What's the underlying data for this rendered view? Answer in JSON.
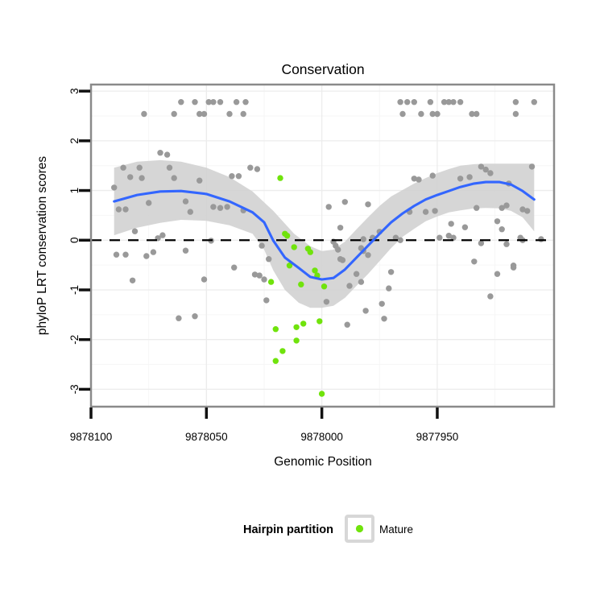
{
  "chart_data": {
    "type": "scatter",
    "title": "Conservation",
    "xlabel": "Genomic Position",
    "ylabel": "phyloP LRT conservation scores",
    "x_axis_reversed": true,
    "x_domain": [
      9878100,
      9877899.4
    ],
    "y_domain": [
      3.132,
      -3.35
    ],
    "x_ticks": [
      9878100,
      9878050,
      9878000,
      9877950
    ],
    "x_tick_labels": [
      "9878100",
      "9878050",
      "9878000",
      "9877950"
    ],
    "y_ticks": [
      3,
      2,
      1,
      0,
      -1,
      -2,
      -3
    ],
    "y_tick_labels": [
      "3",
      "2",
      "1",
      "0",
      "-1",
      "-2",
      "-3"
    ],
    "grid": "on",
    "zero_reference_line": {
      "y": 0,
      "style": "dashed",
      "color": "#000000"
    },
    "colors": {
      "point_gray": "#999999",
      "point_mature": "#70E30C",
      "smooth_line": "#3366FF",
      "confidence_band": "#D2D2D2",
      "frame": "#8A8A8A",
      "grid_major": "#ECECEC",
      "grid_minor": "#F6F6F6",
      "tick": "#111111"
    },
    "legend": {
      "position": "bottom",
      "title": "Hairpin partition",
      "entries": [
        {
          "label": "Mature",
          "color": "#70E30C"
        }
      ]
    },
    "series": [
      {
        "label": "",
        "color_key": "point_gray",
        "points": [
          [
            9878061,
            2.78
          ],
          [
            9878055,
            2.78
          ],
          [
            9878049,
            2.78
          ],
          [
            9878047,
            2.78
          ],
          [
            9878044,
            2.78
          ],
          [
            9878037,
            2.78
          ],
          [
            9878033,
            2.78
          ],
          [
            9877966,
            2.78
          ],
          [
            9877963,
            2.78
          ],
          [
            9877960,
            2.78
          ],
          [
            9877953,
            2.78
          ],
          [
            9877947,
            2.78
          ],
          [
            9877945,
            2.78
          ],
          [
            9877943,
            2.78
          ],
          [
            9877940,
            2.78
          ],
          [
            9877916,
            2.78
          ],
          [
            9877908,
            2.78
          ],
          [
            9878077,
            2.54
          ],
          [
            9878064,
            2.54
          ],
          [
            9878053,
            2.54
          ],
          [
            9878051,
            2.54
          ],
          [
            9878040,
            2.54
          ],
          [
            9878034,
            2.54
          ],
          [
            9877965,
            2.54
          ],
          [
            9877957,
            2.54
          ],
          [
            9877952,
            2.54
          ],
          [
            9877950,
            2.54
          ],
          [
            9877935,
            2.54
          ],
          [
            9877933,
            2.54
          ],
          [
            9877916,
            2.54
          ],
          [
            9878070,
            1.76
          ],
          [
            9878067,
            1.72
          ],
          [
            9878086,
            1.46
          ],
          [
            9878079,
            1.46
          ],
          [
            9878066,
            1.46
          ],
          [
            9878031,
            1.46
          ],
          [
            9878028,
            1.43
          ],
          [
            9878083,
            1.27
          ],
          [
            9878078,
            1.25
          ],
          [
            9878064,
            1.25
          ],
          [
            9878053,
            1.2
          ],
          [
            9878039,
            1.29
          ],
          [
            9878036,
            1.29
          ],
          [
            9878090,
            1.06
          ],
          [
            9877960,
            1.24
          ],
          [
            9877958,
            1.22
          ],
          [
            9877952,
            1.3
          ],
          [
            9877940,
            1.24
          ],
          [
            9877936,
            1.27
          ],
          [
            9877931,
            1.48
          ],
          [
            9877929,
            1.42
          ],
          [
            9877927,
            1.35
          ],
          [
            9877919,
            1.14
          ],
          [
            9877909,
            1.48
          ],
          [
            9878088,
            0.62
          ],
          [
            9878085,
            0.62
          ],
          [
            9878075,
            0.75
          ],
          [
            9878059,
            0.78
          ],
          [
            9878057,
            0.57
          ],
          [
            9878047,
            0.67
          ],
          [
            9878044,
            0.65
          ],
          [
            9878041,
            0.67
          ],
          [
            9878034,
            0.6
          ],
          [
            9878081,
            0.18
          ],
          [
            9878071,
            0.04
          ],
          [
            9878069,
            0.1
          ],
          [
            9878048,
            -0.01
          ],
          [
            9878059,
            -0.21
          ],
          [
            9878089,
            -0.29
          ],
          [
            9878085,
            -0.29
          ],
          [
            9878076,
            -0.32
          ],
          [
            9878073,
            -0.24
          ],
          [
            9878026,
            -0.11
          ],
          [
            9878023,
            -0.38
          ],
          [
            9878082,
            -0.81
          ],
          [
            9878051,
            -0.79
          ],
          [
            9878038,
            -0.55
          ],
          [
            9878029,
            -0.69
          ],
          [
            9878027,
            -0.71
          ],
          [
            9878025,
            -0.79
          ],
          [
            9878024,
            -1.21
          ],
          [
            9878062,
            -1.57
          ],
          [
            9878055,
            -1.53
          ],
          [
            9877997,
            0.67
          ],
          [
            9877990,
            0.77
          ],
          [
            9877980,
            0.72
          ],
          [
            9877962,
            0.57
          ],
          [
            9877955,
            0.57
          ],
          [
            9877951,
            0.59
          ],
          [
            9877933,
            0.65
          ],
          [
            9877922,
            0.65
          ],
          [
            9877920,
            0.7
          ],
          [
            9877913,
            0.62
          ],
          [
            9877911,
            0.59
          ],
          [
            9877992,
            0.25
          ],
          [
            9877975,
            0.17
          ],
          [
            9877982,
            0.02
          ],
          [
            9877978,
            0.05
          ],
          [
            9877968,
            0.05
          ],
          [
            9877966,
            0.0
          ],
          [
            9877995,
            -0.03
          ],
          [
            9877994,
            -0.11
          ],
          [
            9877993,
            -0.19
          ],
          [
            9877983,
            -0.16
          ],
          [
            9877982,
            -0.22
          ],
          [
            9877980,
            -0.3
          ],
          [
            9877949,
            0.05
          ],
          [
            9877945,
            0.09
          ],
          [
            9877943,
            0.05
          ],
          [
            9877944,
            0.33
          ],
          [
            9877938,
            0.26
          ],
          [
            9877924,
            0.38
          ],
          [
            9877922,
            0.22
          ],
          [
            9877914,
            0.05
          ],
          [
            9877931,
            -0.06
          ],
          [
            9877920,
            -0.08
          ],
          [
            9877913,
            0.0
          ],
          [
            9877905,
            0.02
          ],
          [
            9877991,
            -0.4
          ],
          [
            9877992,
            -0.38
          ],
          [
            9877934,
            -0.43
          ],
          [
            9877917,
            -0.51
          ],
          [
            9877924,
            -0.68
          ],
          [
            9877917,
            -0.55
          ],
          [
            9877998,
            -1.24
          ],
          [
            9877988,
            -0.92
          ],
          [
            9877985,
            -0.68
          ],
          [
            9877983,
            -0.84
          ],
          [
            9877970,
            -0.64
          ],
          [
            9877971,
            -0.97
          ],
          [
            9877974,
            -1.28
          ],
          [
            9877981,
            -1.42
          ],
          [
            9877973,
            -1.58
          ],
          [
            9877989,
            -1.7
          ],
          [
            9877927,
            -1.13
          ]
        ]
      },
      {
        "label": "Mature",
        "color_key": "point_mature",
        "points": [
          [
            9878018,
            1.25
          ],
          [
            9878016,
            0.13
          ],
          [
            9878015,
            0.09
          ],
          [
            9878012,
            -0.14
          ],
          [
            9878006,
            -0.17
          ],
          [
            9878005,
            -0.24
          ],
          [
            9878014,
            -0.51
          ],
          [
            9878003,
            -0.61
          ],
          [
            9878002,
            -0.71
          ],
          [
            9877999,
            -0.93
          ],
          [
            9878009,
            -0.89
          ],
          [
            9878022,
            -0.84
          ],
          [
            9878020,
            -1.79
          ],
          [
            9878011,
            -1.75
          ],
          [
            9878008,
            -1.68
          ],
          [
            9878001,
            -1.63
          ],
          [
            9878011,
            -2.02
          ],
          [
            9878017,
            -2.23
          ],
          [
            9878020,
            -2.43
          ],
          [
            9878000,
            -3.09
          ]
        ]
      }
    ],
    "smooth": {
      "line": [
        [
          9878090,
          0.78
        ],
        [
          9878080,
          0.91
        ],
        [
          9878070,
          0.98
        ],
        [
          9878061,
          0.99
        ],
        [
          9878050,
          0.93
        ],
        [
          9878040,
          0.78
        ],
        [
          9878030,
          0.56
        ],
        [
          9878025,
          0.36
        ],
        [
          9878021,
          -0.01
        ],
        [
          9878016,
          -0.35
        ],
        [
          9878010,
          -0.56
        ],
        [
          9878005,
          -0.74
        ],
        [
          9878000,
          -0.79
        ],
        [
          9877995,
          -0.76
        ],
        [
          9877990,
          -0.59
        ],
        [
          9877985,
          -0.35
        ],
        [
          9877980,
          -0.11
        ],
        [
          9877975,
          0.13
        ],
        [
          9877970,
          0.36
        ],
        [
          9877965,
          0.54
        ],
        [
          9877960,
          0.69
        ],
        [
          9877955,
          0.82
        ],
        [
          9877950,
          0.91
        ],
        [
          9877945,
          0.99
        ],
        [
          9877940,
          1.07
        ],
        [
          9877934,
          1.14
        ],
        [
          9877929,
          1.17
        ],
        [
          9877923,
          1.17
        ],
        [
          9877918,
          1.12
        ],
        [
          9877913,
          0.99
        ],
        [
          9877908,
          0.82
        ]
      ],
      "band_upper": [
        [
          9878090,
          1.46
        ],
        [
          9878080,
          1.58
        ],
        [
          9878070,
          1.61
        ],
        [
          9878061,
          1.58
        ],
        [
          9878050,
          1.46
        ],
        [
          9878040,
          1.27
        ],
        [
          9878030,
          0.98
        ],
        [
          9878021,
          0.59
        ],
        [
          9878012,
          0.13
        ],
        [
          9878005,
          -0.12
        ],
        [
          9878000,
          -0.22
        ],
        [
          9877995,
          -0.19
        ],
        [
          9877990,
          -0.03
        ],
        [
          9877985,
          0.22
        ],
        [
          9877980,
          0.46
        ],
        [
          9877975,
          0.69
        ],
        [
          9877970,
          0.88
        ],
        [
          9877965,
          1.01
        ],
        [
          9877960,
          1.14
        ],
        [
          9877955,
          1.25
        ],
        [
          9877950,
          1.35
        ],
        [
          9877945,
          1.43
        ],
        [
          9877940,
          1.5
        ],
        [
          9877934,
          1.53
        ],
        [
          9877929,
          1.54
        ],
        [
          9877923,
          1.54
        ],
        [
          9877918,
          1.54
        ],
        [
          9877913,
          1.54
        ],
        [
          9877908,
          1.54
        ]
      ],
      "band_lower": [
        [
          9878090,
          0.1
        ],
        [
          9878080,
          0.25
        ],
        [
          9878070,
          0.35
        ],
        [
          9878061,
          0.41
        ],
        [
          9878050,
          0.39
        ],
        [
          9878040,
          0.3
        ],
        [
          9878030,
          0.13
        ],
        [
          9878025,
          -0.19
        ],
        [
          9878021,
          -0.61
        ],
        [
          9878016,
          -1.0
        ],
        [
          9878010,
          -1.26
        ],
        [
          9878005,
          -1.36
        ],
        [
          9878000,
          -1.36
        ],
        [
          9877995,
          -1.32
        ],
        [
          9877990,
          -1.16
        ],
        [
          9877985,
          -0.92
        ],
        [
          9877980,
          -0.68
        ],
        [
          9877975,
          -0.42
        ],
        [
          9877970,
          -0.16
        ],
        [
          9877965,
          0.07
        ],
        [
          9877960,
          0.23
        ],
        [
          9877955,
          0.38
        ],
        [
          9877950,
          0.48
        ],
        [
          9877945,
          0.56
        ],
        [
          9877940,
          0.6
        ],
        [
          9877934,
          0.64
        ],
        [
          9877929,
          0.65
        ],
        [
          9877923,
          0.64
        ],
        [
          9877918,
          0.59
        ],
        [
          9877913,
          0.46
        ],
        [
          9877908,
          0.18
        ]
      ]
    }
  }
}
